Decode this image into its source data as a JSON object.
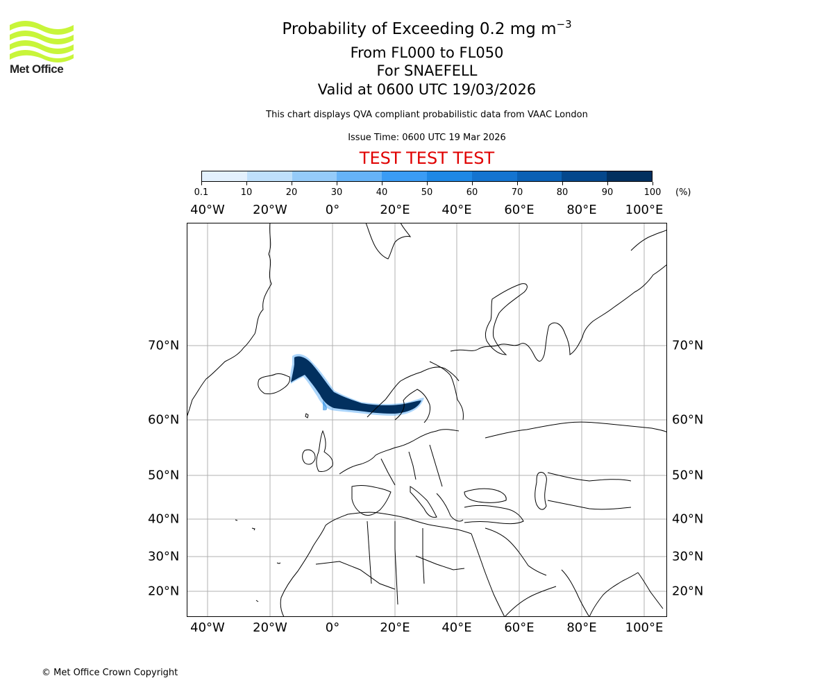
{
  "logo": {
    "name": "Met Office",
    "wave_color": "#c8f53a"
  },
  "header": {
    "title_main": "Probability of Exceeding 0.2 mg m",
    "title_superscript": "−3",
    "title_levels": "From FL000 to FL050",
    "title_volcano": "For SNAEFELL",
    "title_valid": "Valid at 0600 UTC 19/03/2026",
    "subtitle": "This chart displays QVA compliant probabilistic data from VAAC London",
    "issue_time": "Issue Time: 0600 UTC 19 Mar 2026",
    "test_banner": "TEST TEST TEST",
    "test_banner_color": "#e00000"
  },
  "colorbar": {
    "unit": "(%)",
    "ticks": [
      "0.1",
      "10",
      "20",
      "30",
      "40",
      "50",
      "60",
      "70",
      "80",
      "90",
      "100"
    ],
    "colors": [
      "#e3f1fd",
      "#bfe0fb",
      "#95cbf9",
      "#66b3f7",
      "#3a9cf5",
      "#1e88e5",
      "#1474d0",
      "#0a60b4",
      "#04478c",
      "#02305f"
    ]
  },
  "map": {
    "projection": "Cylindrical",
    "lon_labels": [
      "40°W",
      "20°W",
      "0°",
      "20°E",
      "40°E",
      "60°E",
      "80°E",
      "100°E"
    ],
    "lat_labels": [
      "70°N",
      "60°N",
      "50°N",
      "40°N",
      "30°N",
      "20°N"
    ],
    "gridline_color": "#b0b0b0",
    "plume_color": "#02305f",
    "plume_region": "Iceland (Snaefell) eastward over Norwegian Sea to Scandinavia and Gulf of Bothnia"
  },
  "footer": {
    "copyright": "© Met Office Crown Copyright"
  }
}
